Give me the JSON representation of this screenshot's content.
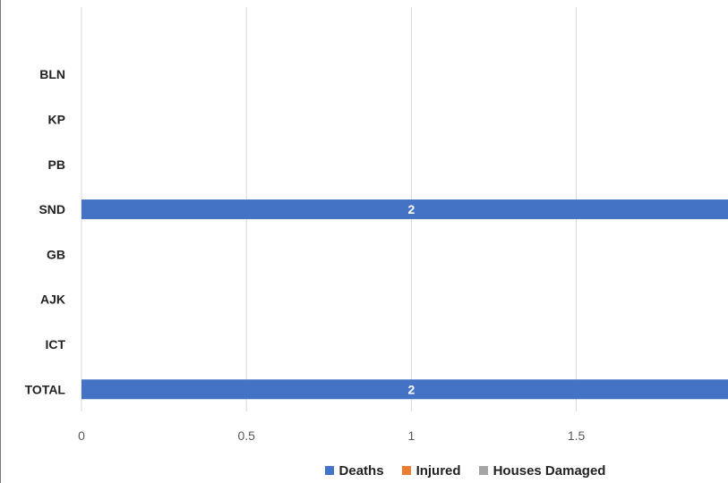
{
  "chart_data": {
    "type": "bar",
    "orientation": "horizontal",
    "categories": [
      "BLN",
      "KP",
      "PB",
      "SND",
      "GB",
      "AJK",
      "ICT",
      "TOTAL"
    ],
    "series": [
      {
        "name": "Deaths",
        "color": "#4472c4",
        "values": [
          null,
          null,
          null,
          2,
          null,
          null,
          null,
          2
        ]
      },
      {
        "name": "Injured",
        "color": "#ed7d31",
        "values": [
          null,
          null,
          null,
          null,
          null,
          null,
          null,
          null
        ]
      },
      {
        "name": "Houses Damaged",
        "color": "#a5a5a5",
        "values": [
          null,
          null,
          null,
          null,
          null,
          null,
          null,
          null
        ]
      }
    ],
    "x_ticks": [
      "0",
      "0.5",
      "1",
      "1.5"
    ],
    "x_tick_values": [
      0,
      0.5,
      1,
      1.5
    ],
    "xlim": [
      0,
      1.96
    ],
    "grid": true,
    "legend_position": "bottom",
    "title": "",
    "xlabel": "",
    "ylabel": ""
  }
}
